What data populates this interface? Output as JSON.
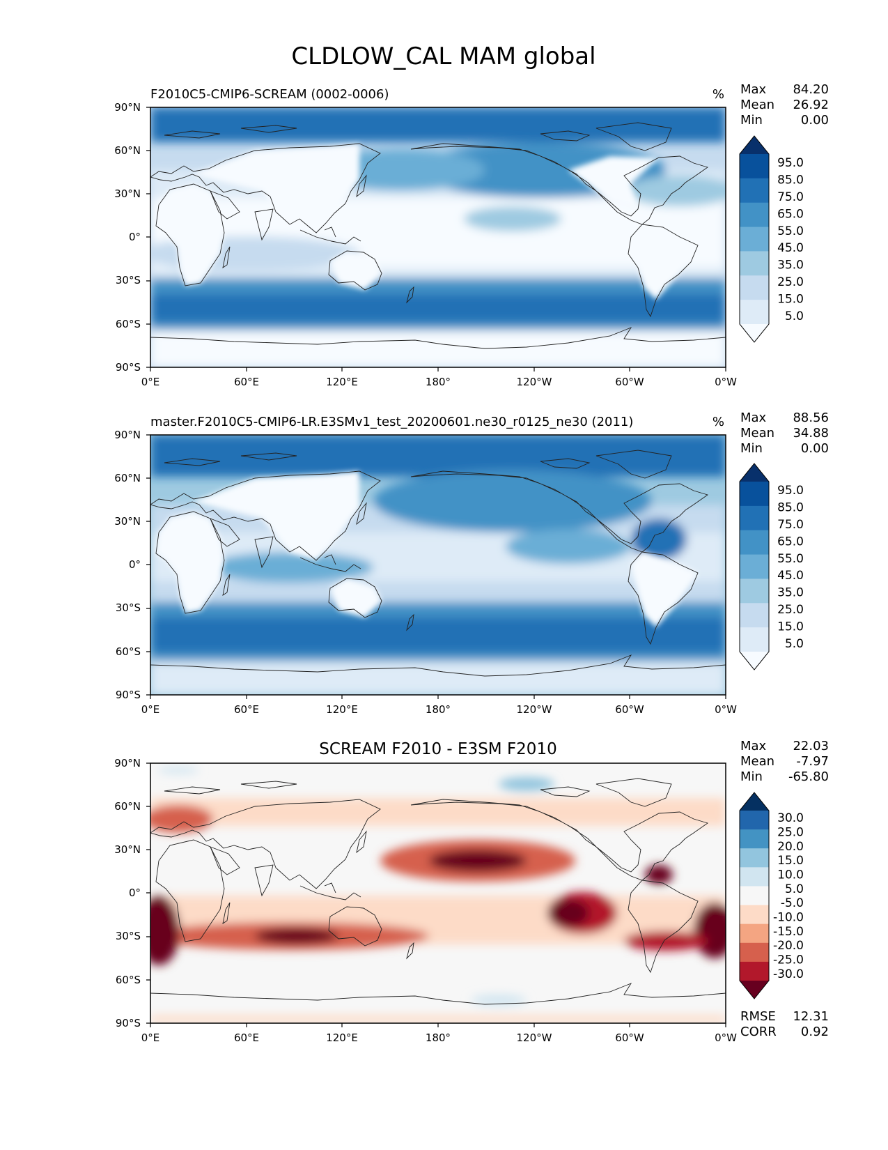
{
  "title": "CLDLOW_CAL MAM global",
  "axis_ticks": {
    "lon": [
      "0°E",
      "60°E",
      "120°E",
      "180°",
      "120°W",
      "60°W",
      "0°W"
    ],
    "lat": [
      "90°N",
      "60°N",
      "30°N",
      "0°",
      "30°S",
      "60°S",
      "90°S"
    ]
  },
  "stat_labels": {
    "max": "Max",
    "mean": "Mean",
    "min": "Min",
    "rmse": "RMSE",
    "corr": "CORR"
  },
  "colors": {
    "blues": [
      "#f7fbff",
      "#deebf7",
      "#c6dbef",
      "#9ecae1",
      "#6baed6",
      "#4292c6",
      "#2171b5",
      "#08519c",
      "#08306b"
    ],
    "diverging": [
      "#67001f",
      "#b2182b",
      "#d6604d",
      "#f4a582",
      "#fddbc7",
      "#f7f7f7",
      "#d1e5f0",
      "#92c5de",
      "#4393c3",
      "#2166ac",
      "#053061"
    ]
  },
  "chart_data": [
    {
      "type": "heatmap",
      "title": "F2010C5-CMIP6-SCREAM (0002-0006)",
      "units": "%",
      "stats": {
        "max": "84.20",
        "mean": "26.92",
        "min": "0.00"
      },
      "xlim": [
        0,
        360
      ],
      "ylim": [
        -90,
        90
      ],
      "colorbar": {
        "levels": [
          "95.0",
          "85.0",
          "75.0",
          "65.0",
          "55.0",
          "45.0",
          "35.0",
          "25.0",
          "15.0",
          "5.0"
        ],
        "extend": "both"
      }
    },
    {
      "type": "heatmap",
      "title": "master.F2010C5-CMIP6-LR.E3SMv1_test_20200601.ne30_r0125_ne30 (2011)",
      "units": "%",
      "stats": {
        "max": "88.56",
        "mean": "34.88",
        "min": "0.00"
      },
      "xlim": [
        0,
        360
      ],
      "ylim": [
        -90,
        90
      ],
      "colorbar": {
        "levels": [
          "95.0",
          "85.0",
          "75.0",
          "65.0",
          "55.0",
          "45.0",
          "35.0",
          "25.0",
          "15.0",
          "5.0"
        ],
        "extend": "both"
      }
    },
    {
      "type": "heatmap",
      "title": "SCREAM F2010 - E3SM F2010",
      "units": "",
      "stats": {
        "max": "22.03",
        "mean": "-7.97",
        "min": "-65.80"
      },
      "metrics": {
        "rmse": "12.31",
        "corr": "0.92"
      },
      "xlim": [
        0,
        360
      ],
      "ylim": [
        -90,
        90
      ],
      "colorbar": {
        "levels": [
          "30.0",
          "25.0",
          "20.0",
          "15.0",
          "10.0",
          "5.0",
          "-5.0",
          "-10.0",
          "-15.0",
          "-20.0",
          "-25.0",
          "-30.0"
        ],
        "extend": "both"
      }
    }
  ]
}
